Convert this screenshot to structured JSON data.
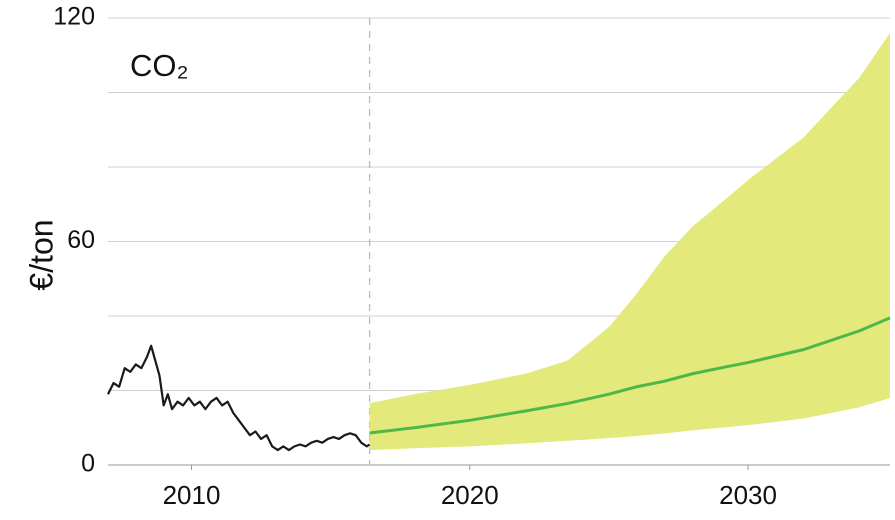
{
  "chart_data": {
    "type": "line",
    "title": "CO₂",
    "y_label": "€/ton",
    "xlim": [
      2007,
      2035.1
    ],
    "xticks": [
      2010,
      2020,
      2030
    ],
    "ylim": [
      0,
      120
    ],
    "yticks": [
      0,
      60,
      120
    ],
    "minor_yticks": [
      20,
      40,
      80,
      100
    ],
    "grid": true,
    "vline": 2016.4,
    "history": {
      "color": "#1a1a1a",
      "x": [
        2007.0,
        2007.2,
        2007.4,
        2007.6,
        2007.8,
        2008.0,
        2008.2,
        2008.4,
        2008.55,
        2008.7,
        2008.85,
        2009.0,
        2009.15,
        2009.3,
        2009.5,
        2009.7,
        2009.9,
        2010.1,
        2010.3,
        2010.5,
        2010.7,
        2010.9,
        2011.1,
        2011.3,
        2011.5,
        2011.7,
        2011.9,
        2012.1,
        2012.3,
        2012.5,
        2012.7,
        2012.9,
        2013.1,
        2013.3,
        2013.5,
        2013.7,
        2013.9,
        2014.1,
        2014.3,
        2014.5,
        2014.7,
        2014.9,
        2015.1,
        2015.3,
        2015.5,
        2015.7,
        2015.9,
        2016.1,
        2016.3,
        2016.4
      ],
      "values": [
        19,
        22,
        21,
        26,
        25,
        27,
        26,
        29,
        32,
        28,
        24,
        16,
        19,
        15,
        17,
        16,
        18,
        16,
        17,
        15,
        17,
        18,
        16,
        17,
        14,
        12,
        10,
        8,
        9,
        7,
        8,
        5,
        4,
        5,
        4,
        5,
        5.5,
        5,
        6,
        6.5,
        6,
        7,
        7.5,
        7,
        8,
        8.5,
        8,
        6,
        5,
        5.5
      ]
    },
    "forecast": {
      "median_color": "#4db848",
      "band_color": "#e3e97a",
      "x": [
        2016.4,
        2018,
        2020,
        2022,
        2023.5,
        2025,
        2026,
        2027,
        2028,
        2029.3,
        2030,
        2032,
        2034,
        2035.1
      ],
      "median": [
        8.6,
        10,
        12,
        14.5,
        16.5,
        19,
        21,
        22.5,
        24.5,
        26.5,
        27.5,
        31,
        36,
        39.5
      ],
      "upper": [
        16.6,
        19,
        21.5,
        24.5,
        28,
        37,
        46,
        56,
        64,
        72,
        76.5,
        88,
        104,
        116
      ],
      "lower": [
        4,
        4.5,
        5,
        5.8,
        6.5,
        7.2,
        7.8,
        8.5,
        9.3,
        10.2,
        10.7,
        12.5,
        15.5,
        18
      ]
    }
  }
}
